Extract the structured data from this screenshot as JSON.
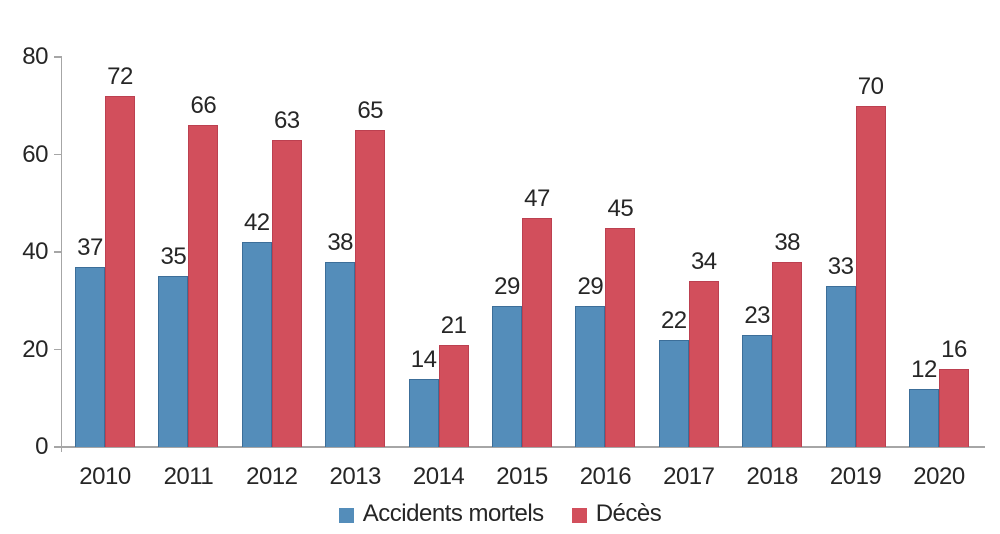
{
  "chart_data": {
    "type": "bar",
    "title": "",
    "categories": [
      "2010",
      "2011",
      "2012",
      "2013",
      "2014",
      "2015",
      "2016",
      "2017",
      "2018",
      "2019",
      "2020"
    ],
    "series": [
      {
        "name": "Accidents mortels",
        "color": "#548dba",
        "border_color": "#3c6e99",
        "values": [
          37,
          35,
          42,
          38,
          14,
          29,
          29,
          22,
          23,
          33,
          12
        ]
      },
      {
        "name": "Décès",
        "color": "#d24f5c",
        "border_color": "#bc4050",
        "values": [
          72,
          66,
          63,
          65,
          21,
          47,
          45,
          34,
          38,
          70,
          16
        ]
      }
    ],
    "xlabel": "",
    "ylabel": "",
    "y_axis": {
      "min": 0,
      "max": 80,
      "ticks": [
        0,
        20,
        40,
        60,
        80
      ]
    },
    "legend_position": "bottom",
    "grid": false,
    "data_labels": true,
    "axis_color": "#a6a6a6",
    "text_color": "#262626",
    "background_color": "#ffffff"
  }
}
